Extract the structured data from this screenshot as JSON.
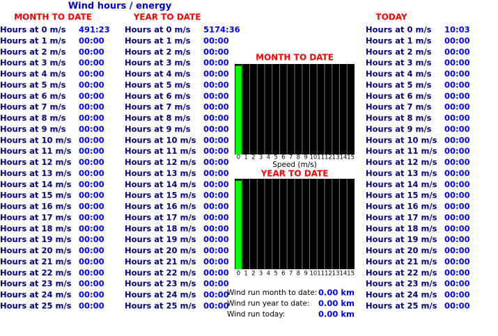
{
  "title": "Wind hours / energy",
  "columns": [
    {
      "heading": "MONTH TO DATE",
      "labels": [
        "Hours at 0 m/s",
        "Hours at 1 m/s",
        "Hours at 2 m/s",
        "Hours at 3 m/s",
        "Hours at 4 m/s",
        "Hours at 5 m/s",
        "Hours at 6 m/s",
        "Hours at 7 m/s",
        "Hours at 8 m/s",
        "Hours at 9 m/s",
        "Hours at 10 m/s",
        "Hours at 11 m/s",
        "Hours at 12 m/s",
        "Hours at 13 m/s",
        "Hours at 14 m/s",
        "Hours at 15 m/s",
        "Hours at 16 m/s",
        "Hours at 17 m/s",
        "Hours at 18 m/s",
        "Hours at 19 m/s",
        "Hours at 20 m/s",
        "Hours at 21 m/s",
        "Hours at 22 m/s",
        "Hours at 23 m/s",
        "Hours at 24 m/s",
        "Hours at 25 m/s"
      ],
      "values": [
        "491:23",
        "00:00",
        "00:00",
        "00:00",
        "00:00",
        "00:00",
        "00:00",
        "00:00",
        "00:00",
        "00:00",
        "00:00",
        "00:00",
        "00:00",
        "00:00",
        "00:00",
        "00:00",
        "00:00",
        "00:00",
        "00:00",
        "00:00",
        "00:00",
        "00:00",
        "00:00",
        "00:00",
        "00:00",
        "00:00"
      ]
    },
    {
      "heading": "YEAR TO DATE",
      "labels": [
        "Hours at 0 m/s",
        "Hours at 1 m/s",
        "Hours at 2 m/s",
        "Hours at 3 m/s",
        "Hours at 4 m/s",
        "Hours at 5 m/s",
        "Hours at 6 m/s",
        "Hours at 7 m/s",
        "Hours at 8 m/s",
        "Hours at 9 m/s",
        "Hours at 10 m/s",
        "Hours at 11 m/s",
        "Hours at 12 m/s",
        "Hours at 13 m/s",
        "Hours at 14 m/s",
        "Hours at 15 m/s",
        "Hours at 16 m/s",
        "Hours at 17 m/s",
        "Hours at 18 m/s",
        "Hours at 19 m/s",
        "Hours at 20 m/s",
        "Hours at 21 m/s",
        "Hours at 22 m/s",
        "Hours at 23 m/s",
        "Hours at 24 m/s",
        "Hours at 25 m/s"
      ],
      "values": [
        "5174:36",
        "00:00",
        "00:00",
        "00:00",
        "00:00",
        "00:00",
        "00:00",
        "00:00",
        "00:00",
        "00:00",
        "00:00",
        "00:00",
        "00:00",
        "00:00",
        "00:00",
        "00:00",
        "00:00",
        "00:00",
        "00:00",
        "00:00",
        "00:00",
        "00:00",
        "00:00",
        "00:00",
        "00:00",
        "00:00"
      ]
    },
    {
      "heading": "TODAY",
      "labels": [
        "Hours at 0 m/s",
        "Hours at 1 m/s",
        "Hours at 2 m/s",
        "Hours at 3 m/s",
        "Hours at 4 m/s",
        "Hours at 5 m/s",
        "Hours at 6 m/s",
        "Hours at 7 m/s",
        "Hours at 8 m/s",
        "Hours at 9 m/s",
        "Hours at 10 m/s",
        "Hours at 11 m/s",
        "Hours at 12 m/s",
        "Hours at 13 m/s",
        "Hours at 14 m/s",
        "Hours at 15 m/s",
        "Hours at 16 m/s",
        "Hours at 17 m/s",
        "Hours at 18 m/s",
        "Hours at 19 m/s",
        "Hours at 20 m/s",
        "Hours at 21 m/s",
        "Hours at 22 m/s",
        "Hours at 23 m/s",
        "Hours at 24 m/s",
        "Hours at 25 m/s"
      ],
      "values": [
        "10:03",
        "00:00",
        "00:00",
        "00:00",
        "00:00",
        "00:00",
        "00:00",
        "00:00",
        "00:00",
        "00:00",
        "00:00",
        "00:00",
        "00:00",
        "00:00",
        "00:00",
        "00:00",
        "00:00",
        "00:00",
        "00:00",
        "00:00",
        "00:00",
        "00:00",
        "00:00",
        "00:00",
        "00:00",
        "00:00"
      ]
    }
  ],
  "chart_data": [
    {
      "type": "bar",
      "title": "MONTH TO DATE",
      "xlabel": "Speed (m/s)",
      "color": "#00ff00",
      "categories": [
        "0",
        "1",
        "2",
        "3",
        "4",
        "5",
        "6",
        "7",
        "8",
        "9",
        "10",
        "11",
        "12",
        "13",
        "14",
        "15"
      ],
      "values": [
        98,
        0,
        0,
        0,
        0,
        0,
        0,
        0,
        0,
        0,
        0,
        0,
        0,
        0,
        0,
        0
      ],
      "ylim": [
        0,
        100
      ]
    },
    {
      "type": "bar",
      "title": "YEAR TO DATE",
      "color": "#00ff00",
      "categories": [
        "0",
        "1",
        "2",
        "3",
        "4",
        "5",
        "6",
        "7",
        "8",
        "9",
        "10",
        "11",
        "12",
        "13",
        "14",
        "15"
      ],
      "values": [
        98,
        0,
        0,
        0,
        0,
        0,
        0,
        0,
        0,
        0,
        0,
        0,
        0,
        0,
        0,
        0
      ],
      "ylim": [
        0,
        100
      ]
    }
  ],
  "wind_run": [
    {
      "label": "Wind run month to date:",
      "value": "0.00 km"
    },
    {
      "label": "Wind run year to date:",
      "value": "0.00 km"
    },
    {
      "label": "Wind run today:",
      "value": "0.00 km"
    }
  ]
}
